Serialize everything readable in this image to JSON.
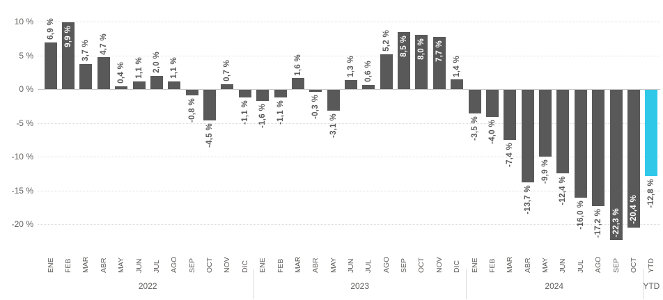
{
  "colors": {
    "bar": "#595959",
    "highlight": "#30C8E8",
    "value_label": "#595959",
    "value_label_inside": "#FFFFFF",
    "axis_text": "#605E5C",
    "gridline": "#DCDCDC",
    "zero_line": "#C6C6C6",
    "background": "#FFFFFF"
  },
  "chart_data": {
    "type": "bar",
    "title": "",
    "xlabel": "",
    "ylabel": "",
    "ylim": [
      -25,
      12
    ],
    "grid": true,
    "legend": false,
    "y_axis": {
      "ticks": [
        {
          "value": 10,
          "label": "10 %"
        },
        {
          "value": 5,
          "label": "5 %"
        },
        {
          "value": 0,
          "label": "0 %"
        },
        {
          "value": -5,
          "label": "-5 %"
        },
        {
          "value": -10,
          "label": "-10 %"
        },
        {
          "value": -15,
          "label": "-15 %"
        },
        {
          "value": -20,
          "label": "-20 %"
        }
      ]
    },
    "groups": [
      {
        "label": "2022",
        "count": 12
      },
      {
        "label": "2023",
        "count": 12
      },
      {
        "label": "2024",
        "count": 10
      },
      {
        "label": "YTD",
        "count": 1
      }
    ],
    "bars": [
      {
        "month": "ENE",
        "group": "2022",
        "value": 6.9,
        "label": "6,9 %",
        "label_inside": false,
        "highlight": false
      },
      {
        "month": "FEB",
        "group": "2022",
        "value": 9.9,
        "label": "9,9 %",
        "label_inside": true,
        "highlight": false
      },
      {
        "month": "MAR",
        "group": "2022",
        "value": 3.7,
        "label": "3,7 %",
        "label_inside": false,
        "highlight": false
      },
      {
        "month": "ABR",
        "group": "2022",
        "value": 4.7,
        "label": "4,7 %",
        "label_inside": false,
        "highlight": false
      },
      {
        "month": "MAY",
        "group": "2022",
        "value": 0.4,
        "label": "0,4 %",
        "label_inside": false,
        "highlight": false
      },
      {
        "month": "JUN",
        "group": "2022",
        "value": 1.1,
        "label": "1,1 %",
        "label_inside": false,
        "highlight": false
      },
      {
        "month": "JUL",
        "group": "2022",
        "value": 2.0,
        "label": "2,0 %",
        "label_inside": false,
        "highlight": false
      },
      {
        "month": "AGO",
        "group": "2022",
        "value": 1.1,
        "label": "1,1 %",
        "label_inside": false,
        "highlight": false
      },
      {
        "month": "SEP",
        "group": "2022",
        "value": -0.8,
        "label": "-0,8 %",
        "label_inside": false,
        "highlight": false
      },
      {
        "month": "OCT",
        "group": "2022",
        "value": -4.5,
        "label": "-4,5 %",
        "label_inside": false,
        "highlight": false
      },
      {
        "month": "NOV",
        "group": "2022",
        "value": 0.7,
        "label": "0,7 %",
        "label_inside": false,
        "highlight": false
      },
      {
        "month": "DIC",
        "group": "2022",
        "value": -1.1,
        "label": "-1,1 %",
        "label_inside": false,
        "highlight": false
      },
      {
        "month": "ENE",
        "group": "2023",
        "value": -1.6,
        "label": "-1,6 %",
        "label_inside": false,
        "highlight": false
      },
      {
        "month": "FEB",
        "group": "2023",
        "value": -1.1,
        "label": "-1,1 %",
        "label_inside": false,
        "highlight": false
      },
      {
        "month": "MAR",
        "group": "2023",
        "value": 1.6,
        "label": "1,6 %",
        "label_inside": false,
        "highlight": false
      },
      {
        "month": "ABR",
        "group": "2023",
        "value": -0.3,
        "label": "-0,3 %",
        "label_inside": false,
        "highlight": false
      },
      {
        "month": "MAY",
        "group": "2023",
        "value": -3.1,
        "label": "-3,1 %",
        "label_inside": false,
        "highlight": false
      },
      {
        "month": "JUN",
        "group": "2023",
        "value": 1.3,
        "label": "1,3 %",
        "label_inside": false,
        "highlight": false
      },
      {
        "month": "JUL",
        "group": "2023",
        "value": 0.6,
        "label": "0,6 %",
        "label_inside": false,
        "highlight": false
      },
      {
        "month": "AGO",
        "group": "2023",
        "value": 5.2,
        "label": "5,2 %",
        "label_inside": false,
        "highlight": false
      },
      {
        "month": "SEP",
        "group": "2023",
        "value": 8.5,
        "label": "8,5 %",
        "label_inside": true,
        "highlight": false
      },
      {
        "month": "OCT",
        "group": "2023",
        "value": 8.0,
        "label": "8,0 %",
        "label_inside": true,
        "highlight": false
      },
      {
        "month": "NOV",
        "group": "2023",
        "value": 7.7,
        "label": "7,7 %",
        "label_inside": true,
        "highlight": false
      },
      {
        "month": "DIC",
        "group": "2023",
        "value": 1.4,
        "label": "1,4 %",
        "label_inside": false,
        "highlight": false
      },
      {
        "month": "ENE",
        "group": "2024",
        "value": -3.5,
        "label": "-3,5 %",
        "label_inside": false,
        "highlight": false
      },
      {
        "month": "FEB",
        "group": "2024",
        "value": -4.0,
        "label": "-4,0 %",
        "label_inside": false,
        "highlight": false
      },
      {
        "month": "MAR",
        "group": "2024",
        "value": -7.4,
        "label": "-7,4 %",
        "label_inside": false,
        "highlight": false
      },
      {
        "month": "ABR",
        "group": "2024",
        "value": -13.7,
        "label": "-13,7 %",
        "label_inside": false,
        "highlight": false
      },
      {
        "month": "MAY",
        "group": "2024",
        "value": -9.9,
        "label": "-9,9 %",
        "label_inside": false,
        "highlight": false
      },
      {
        "month": "JUN",
        "group": "2024",
        "value": -12.4,
        "label": "-12,4 %",
        "label_inside": false,
        "highlight": false
      },
      {
        "month": "JUL",
        "group": "2024",
        "value": -16.0,
        "label": "-16,0 %",
        "label_inside": false,
        "highlight": false
      },
      {
        "month": "AGO",
        "group": "2024",
        "value": -17.2,
        "label": "-17,2 %",
        "label_inside": false,
        "highlight": false
      },
      {
        "month": "SEP",
        "group": "2024",
        "value": -22.3,
        "label": "-22,3 %",
        "label_inside": true,
        "highlight": false
      },
      {
        "month": "OCT",
        "group": "2024",
        "value": -20.4,
        "label": "-20,4 %",
        "label_inside": true,
        "highlight": false
      },
      {
        "month": "YTD",
        "group": "YTD",
        "value": -12.8,
        "label": "-12,8 %",
        "label_inside": false,
        "highlight": true
      }
    ]
  }
}
